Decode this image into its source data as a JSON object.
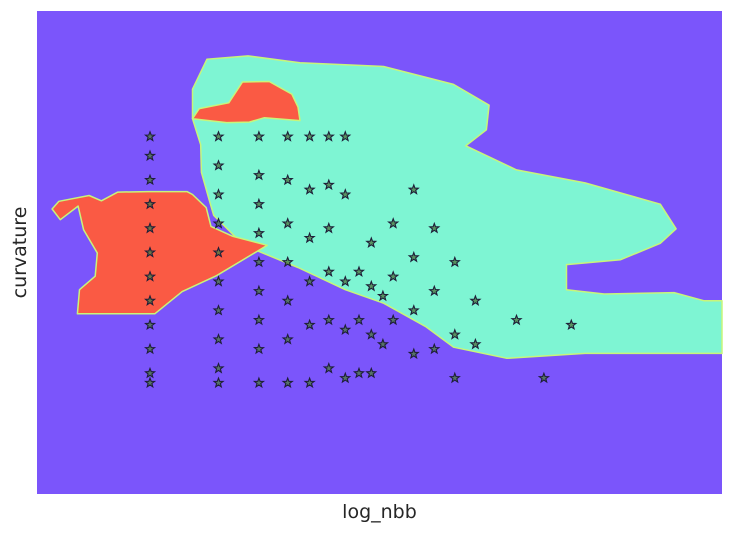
{
  "chart_data": {
    "type": "scatter",
    "title": "",
    "xlabel": "log_nbb",
    "ylabel": "curvature",
    "grid": false,
    "legend": "none",
    "xlim": [
      0,
      10
    ],
    "ylim": [
      0,
      10
    ],
    "background_region_color": "#7b55fb",
    "regions": [
      {
        "color": "#7ef5d3",
        "polygon": [
          [
            2.27,
            8.38
          ],
          [
            2.27,
            7.77
          ],
          [
            2.39,
            7.23
          ],
          [
            2.4,
            6.66
          ],
          [
            2.51,
            6.11
          ],
          [
            2.58,
            5.77
          ],
          [
            3.02,
            5.15
          ],
          [
            3.81,
            4.69
          ],
          [
            4.5,
            4.23
          ],
          [
            5.06,
            3.95
          ],
          [
            5.68,
            3.46
          ],
          [
            6.08,
            3.04
          ],
          [
            6.86,
            2.81
          ],
          [
            8.0,
            2.91
          ],
          [
            9.0,
            2.91
          ],
          [
            10.0,
            2.91
          ],
          [
            10.0,
            4.0
          ],
          [
            9.74,
            4.0
          ],
          [
            9.3,
            4.17
          ],
          [
            8.28,
            4.14
          ],
          [
            7.73,
            4.23
          ],
          [
            7.73,
            4.75
          ],
          [
            8.52,
            4.85
          ],
          [
            9.1,
            5.19
          ],
          [
            9.33,
            5.49
          ],
          [
            9.1,
            6.0
          ],
          [
            8.0,
            6.44
          ],
          [
            7.0,
            6.71
          ],
          [
            6.26,
            7.21
          ],
          [
            6.56,
            7.54
          ],
          [
            6.6,
            8.05
          ],
          [
            6.08,
            8.48
          ],
          [
            5.06,
            8.85
          ],
          [
            3.84,
            8.93
          ],
          [
            3.08,
            9.07
          ],
          [
            2.48,
            9.0
          ]
        ]
      },
      {
        "color": "#fa5a44",
        "polygon": [
          [
            0.6,
            5.96
          ],
          [
            0.68,
            5.47
          ],
          [
            0.88,
            4.99
          ],
          [
            0.85,
            4.51
          ],
          [
            0.62,
            4.23
          ],
          [
            0.59,
            3.73
          ],
          [
            1.72,
            3.73
          ],
          [
            2.12,
            4.19
          ],
          [
            2.62,
            4.52
          ],
          [
            3.36,
            5.15
          ],
          [
            2.85,
            5.34
          ],
          [
            2.54,
            5.54
          ],
          [
            2.47,
            5.93
          ],
          [
            2.27,
            6.2
          ],
          [
            2.19,
            6.26
          ],
          [
            1.62,
            6.26
          ],
          [
            1.18,
            6.25
          ],
          [
            0.94,
            6.07
          ],
          [
            0.76,
            6.18
          ],
          [
            0.32,
            6.06
          ],
          [
            0.22,
            5.9
          ],
          [
            0.34,
            5.68
          ]
        ]
      },
      {
        "color": "#fa5a44",
        "polygon": [
          [
            2.27,
            7.77
          ],
          [
            2.77,
            7.69
          ],
          [
            3.1,
            7.7
          ],
          [
            3.32,
            7.79
          ],
          [
            3.84,
            7.73
          ],
          [
            3.81,
            8.01
          ],
          [
            3.72,
            8.28
          ],
          [
            3.39,
            8.54
          ],
          [
            3.0,
            8.53
          ],
          [
            2.8,
            8.1
          ],
          [
            2.37,
            7.98
          ]
        ]
      }
    ],
    "x": [
      1.65,
      2.65,
      3.24,
      3.66,
      3.98,
      4.26,
      4.5,
      4.7,
      4.88,
      5.05,
      5.2,
      5.5,
      5.8,
      6.1,
      6.4,
      7.0,
      7.4,
      7.8
    ],
    "series": [
      {
        "marker": "star",
        "points": [
          [
            1.65,
            7.4
          ],
          [
            1.65,
            7.0
          ],
          [
            1.65,
            6.5
          ],
          [
            1.65,
            6.0
          ],
          [
            1.65,
            5.5
          ],
          [
            1.65,
            5.0
          ],
          [
            1.65,
            4.5
          ],
          [
            1.65,
            4.0
          ],
          [
            1.65,
            3.5
          ],
          [
            1.65,
            3.0
          ],
          [
            1.65,
            2.5
          ],
          [
            1.65,
            2.3
          ],
          [
            2.65,
            7.4
          ],
          [
            2.65,
            6.8
          ],
          [
            2.65,
            6.2
          ],
          [
            2.65,
            5.6
          ],
          [
            2.65,
            5.0
          ],
          [
            2.65,
            4.4
          ],
          [
            2.65,
            3.8
          ],
          [
            2.65,
            3.2
          ],
          [
            2.65,
            2.6
          ],
          [
            2.65,
            2.3
          ],
          [
            3.24,
            7.4
          ],
          [
            3.24,
            6.6
          ],
          [
            3.24,
            6.0
          ],
          [
            3.24,
            5.4
          ],
          [
            3.24,
            4.8
          ],
          [
            3.24,
            4.2
          ],
          [
            3.24,
            3.6
          ],
          [
            3.24,
            3.0
          ],
          [
            3.24,
            2.3
          ],
          [
            3.66,
            7.4
          ],
          [
            3.66,
            6.5
          ],
          [
            3.66,
            5.6
          ],
          [
            3.66,
            4.8
          ],
          [
            3.66,
            4.0
          ],
          [
            3.66,
            3.2
          ],
          [
            3.66,
            2.3
          ],
          [
            3.98,
            7.4
          ],
          [
            3.98,
            6.3
          ],
          [
            3.98,
            5.3
          ],
          [
            3.98,
            4.4
          ],
          [
            3.98,
            3.5
          ],
          [
            3.98,
            2.3
          ],
          [
            4.26,
            7.4
          ],
          [
            4.26,
            6.4
          ],
          [
            4.26,
            5.5
          ],
          [
            4.26,
            4.6
          ],
          [
            4.26,
            3.6
          ],
          [
            4.26,
            2.6
          ],
          [
            4.5,
            7.4
          ],
          [
            4.5,
            6.2
          ],
          [
            4.5,
            4.4
          ],
          [
            4.5,
            3.4
          ],
          [
            4.5,
            2.4
          ],
          [
            4.7,
            4.6
          ],
          [
            4.7,
            3.6
          ],
          [
            4.7,
            2.5
          ],
          [
            4.88,
            5.2
          ],
          [
            4.88,
            4.3
          ],
          [
            4.88,
            3.3
          ],
          [
            4.88,
            2.5
          ],
          [
            5.05,
            4.1
          ],
          [
            5.05,
            3.1
          ],
          [
            5.2,
            5.6
          ],
          [
            5.2,
            4.5
          ],
          [
            5.2,
            3.6
          ],
          [
            5.5,
            6.3
          ],
          [
            5.5,
            4.9
          ],
          [
            5.5,
            3.8
          ],
          [
            5.5,
            2.9
          ],
          [
            5.8,
            5.5
          ],
          [
            5.8,
            4.2
          ],
          [
            5.8,
            3.0
          ],
          [
            6.1,
            4.8
          ],
          [
            6.1,
            3.3
          ],
          [
            6.1,
            2.4
          ],
          [
            6.4,
            4.0
          ],
          [
            6.4,
            3.1
          ],
          [
            7.0,
            3.6
          ],
          [
            7.4,
            2.4
          ],
          [
            7.8,
            3.5
          ]
        ]
      }
    ]
  }
}
